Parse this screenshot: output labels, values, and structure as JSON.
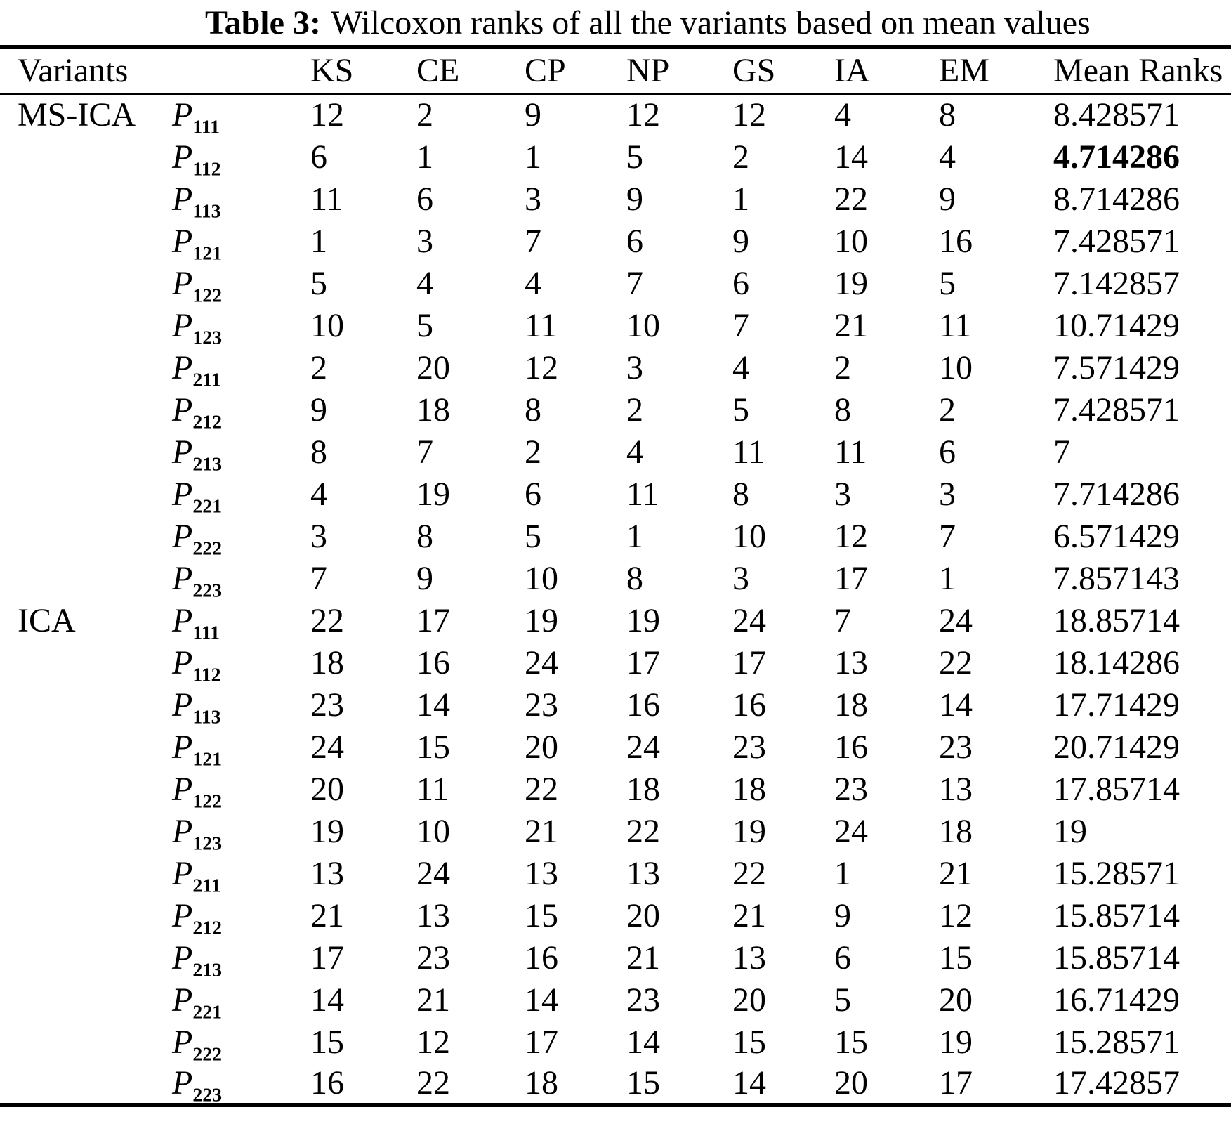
{
  "caption": {
    "prefix": "Table 3:",
    "text": "Wilcoxon ranks of all the variants based on mean values"
  },
  "table": {
    "header": {
      "variants": "Variants",
      "metrics": [
        "KS",
        "CE",
        "CP",
        "NP",
        "GS",
        "IA",
        "EM"
      ],
      "mean": "Mean Ranks"
    },
    "variant_symbol": "P",
    "groups": [
      {
        "label": "MS-ICA",
        "rows": [
          {
            "p": "111",
            "ranks": [
              12,
              2,
              9,
              12,
              12,
              4,
              8
            ],
            "mean": "8.428571",
            "bold": false
          },
          {
            "p": "112",
            "ranks": [
              6,
              1,
              1,
              5,
              2,
              14,
              4
            ],
            "mean": "4.714286",
            "bold": true
          },
          {
            "p": "113",
            "ranks": [
              11,
              6,
              3,
              9,
              1,
              22,
              9
            ],
            "mean": "8.714286",
            "bold": false
          },
          {
            "p": "121",
            "ranks": [
              1,
              3,
              7,
              6,
              9,
              10,
              16
            ],
            "mean": "7.428571",
            "bold": false
          },
          {
            "p": "122",
            "ranks": [
              5,
              4,
              4,
              7,
              6,
              19,
              5
            ],
            "mean": "7.142857",
            "bold": false
          },
          {
            "p": "123",
            "ranks": [
              10,
              5,
              11,
              10,
              7,
              21,
              11
            ],
            "mean": "10.71429",
            "bold": false
          },
          {
            "p": "211",
            "ranks": [
              2,
              20,
              12,
              3,
              4,
              2,
              10
            ],
            "mean": "7.571429",
            "bold": false
          },
          {
            "p": "212",
            "ranks": [
              9,
              18,
              8,
              2,
              5,
              8,
              2
            ],
            "mean": "7.428571",
            "bold": false
          },
          {
            "p": "213",
            "ranks": [
              8,
              7,
              2,
              4,
              11,
              11,
              6
            ],
            "mean": "7",
            "bold": false
          },
          {
            "p": "221",
            "ranks": [
              4,
              19,
              6,
              11,
              8,
              3,
              3
            ],
            "mean": "7.714286",
            "bold": false
          },
          {
            "p": "222",
            "ranks": [
              3,
              8,
              5,
              1,
              10,
              12,
              7
            ],
            "mean": "6.571429",
            "bold": false
          },
          {
            "p": "223",
            "ranks": [
              7,
              9,
              10,
              8,
              3,
              17,
              1
            ],
            "mean": "7.857143",
            "bold": false
          }
        ]
      },
      {
        "label": "ICA",
        "rows": [
          {
            "p": "111",
            "ranks": [
              22,
              17,
              19,
              19,
              24,
              7,
              24
            ],
            "mean": "18.85714",
            "bold": false
          },
          {
            "p": "112",
            "ranks": [
              18,
              16,
              24,
              17,
              17,
              13,
              22
            ],
            "mean": "18.14286",
            "bold": false
          },
          {
            "p": "113",
            "ranks": [
              23,
              14,
              23,
              16,
              16,
              18,
              14
            ],
            "mean": "17.71429",
            "bold": false
          },
          {
            "p": "121",
            "ranks": [
              24,
              15,
              20,
              24,
              23,
              16,
              23
            ],
            "mean": "20.71429",
            "bold": false
          },
          {
            "p": "122",
            "ranks": [
              20,
              11,
              22,
              18,
              18,
              23,
              13
            ],
            "mean": "17.85714",
            "bold": false
          },
          {
            "p": "123",
            "ranks": [
              19,
              10,
              21,
              22,
              19,
              24,
              18
            ],
            "mean": "19",
            "bold": false
          },
          {
            "p": "211",
            "ranks": [
              13,
              24,
              13,
              13,
              22,
              1,
              21
            ],
            "mean": "15.28571",
            "bold": false
          },
          {
            "p": "212",
            "ranks": [
              21,
              13,
              15,
              20,
              21,
              9,
              12
            ],
            "mean": "15.85714",
            "bold": false
          },
          {
            "p": "213",
            "ranks": [
              17,
              23,
              16,
              21,
              13,
              6,
              15
            ],
            "mean": "15.85714",
            "bold": false
          },
          {
            "p": "221",
            "ranks": [
              14,
              21,
              14,
              23,
              20,
              5,
              20
            ],
            "mean": "16.71429",
            "bold": false
          },
          {
            "p": "222",
            "ranks": [
              15,
              12,
              17,
              14,
              15,
              15,
              19
            ],
            "mean": "15.28571",
            "bold": false
          },
          {
            "p": "223",
            "ranks": [
              16,
              22,
              18,
              15,
              14,
              20,
              17
            ],
            "mean": "17.42857",
            "bold": false
          }
        ]
      }
    ]
  }
}
